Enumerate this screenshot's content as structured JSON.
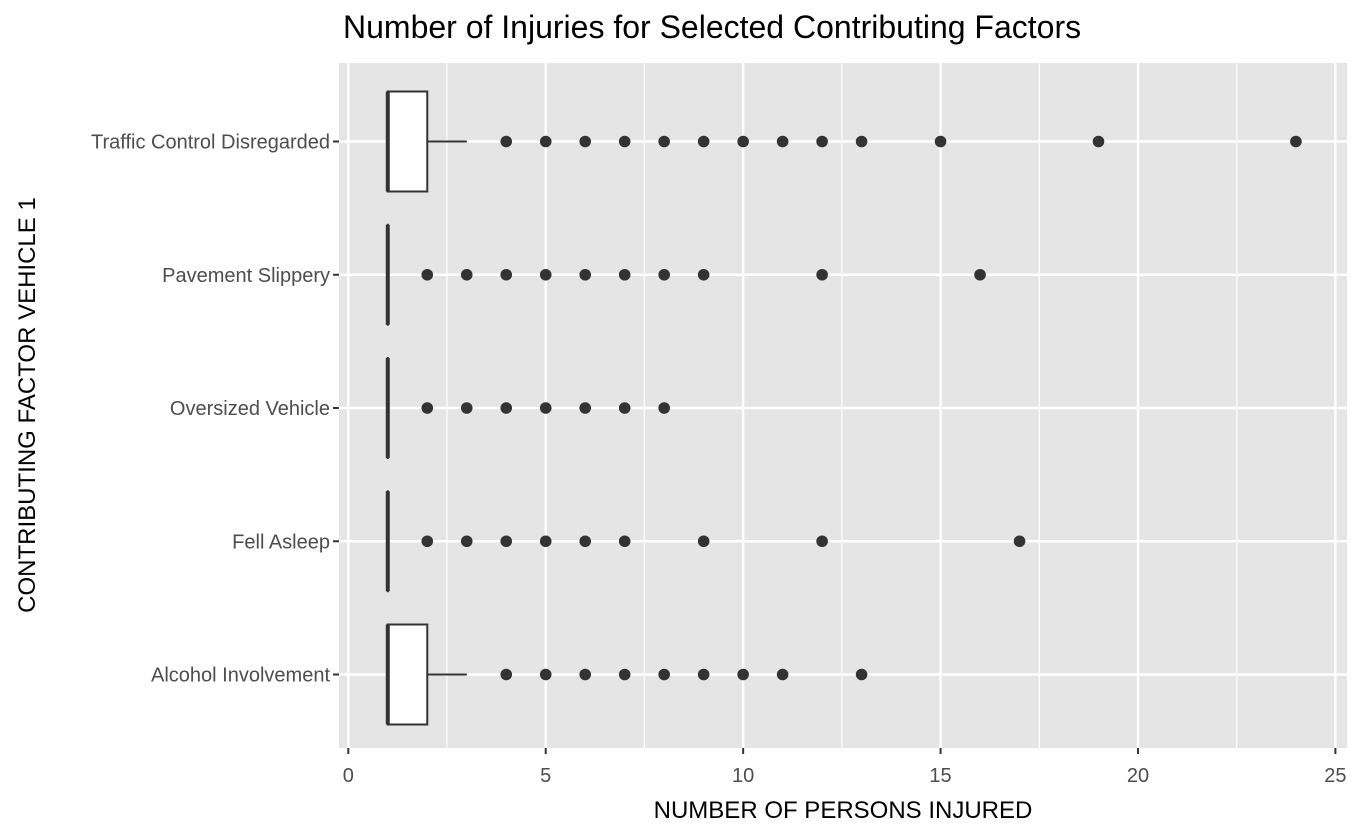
{
  "chart_data": {
    "type": "boxplot",
    "title": "Number of Injuries for Selected Contributing Factors",
    "xlabel": "NUMBER OF PERSONS INJURED",
    "ylabel": "CONTRIBUTING FACTOR VEHICLE 1",
    "xlim": [
      0,
      25
    ],
    "x_ticks": [
      0,
      5,
      10,
      15,
      20,
      25
    ],
    "x_minor_ticks": [
      2.5,
      7.5,
      12.5,
      17.5,
      22.5
    ],
    "orientation": "horizontal",
    "grid": true,
    "colors": {
      "panel": "#e5e5e5",
      "grid": "#ffffff",
      "box_fill": "#ffffff",
      "box_line": "#333333",
      "point": "#333333"
    },
    "categories": [
      "Traffic Control Disregarded",
      "Pavement Slippery",
      "Oversized Vehicle",
      "Fell Asleep",
      "Alcohol Involvement"
    ],
    "boxes": [
      {
        "name": "Traffic Control Disregarded",
        "q1": 1,
        "median": 1,
        "q3": 2,
        "whisker_low": 1,
        "whisker_high": 3,
        "outliers": [
          4,
          5,
          6,
          7,
          8,
          9,
          10,
          11,
          12,
          13,
          15,
          19,
          24
        ]
      },
      {
        "name": "Pavement Slippery",
        "q1": 1,
        "median": 1,
        "q3": 1,
        "whisker_low": 1,
        "whisker_high": 1,
        "outliers": [
          2,
          3,
          4,
          5,
          6,
          7,
          8,
          9,
          12,
          16
        ]
      },
      {
        "name": "Oversized Vehicle",
        "q1": 1,
        "median": 1,
        "q3": 1,
        "whisker_low": 1,
        "whisker_high": 1,
        "outliers": [
          2,
          3,
          4,
          5,
          6,
          7,
          8
        ]
      },
      {
        "name": "Fell Asleep",
        "q1": 1,
        "median": 1,
        "q3": 1,
        "whisker_low": 1,
        "whisker_high": 1,
        "outliers": [
          2,
          3,
          4,
          5,
          6,
          7,
          9,
          12,
          17
        ]
      },
      {
        "name": "Alcohol Involvement",
        "q1": 1,
        "median": 1,
        "q3": 2,
        "whisker_low": 1,
        "whisker_high": 3,
        "outliers": [
          4,
          5,
          6,
          7,
          8,
          9,
          10,
          11,
          13
        ]
      }
    ]
  }
}
